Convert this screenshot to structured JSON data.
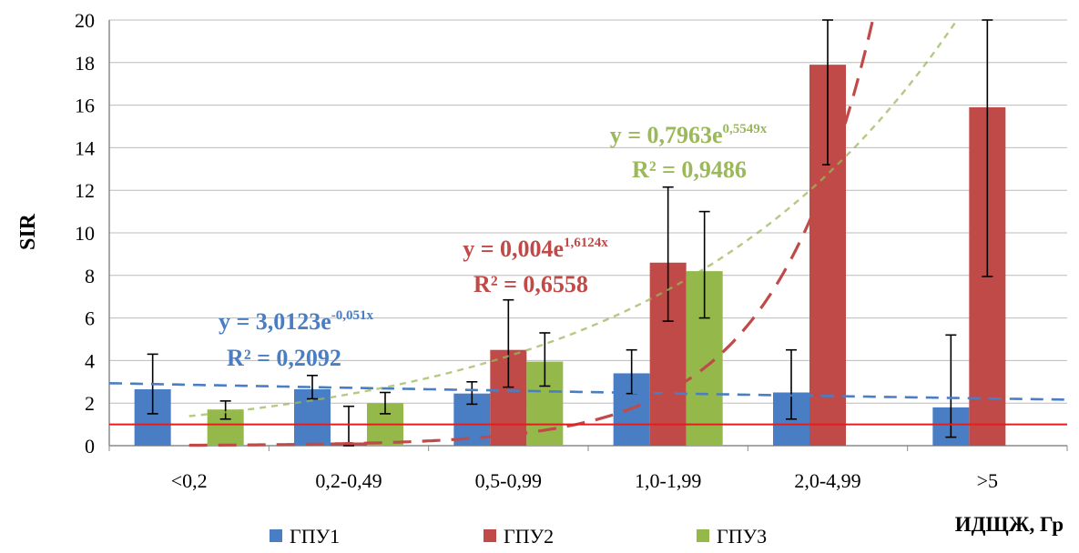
{
  "chart_data": {
    "type": "bar",
    "title": "",
    "xlabel": "ИДЩЖ, Гр",
    "ylabel": "SIR",
    "ylim": [
      0,
      20
    ],
    "yticks": [
      0,
      2,
      4,
      6,
      8,
      10,
      12,
      14,
      16,
      18,
      20
    ],
    "grid": true,
    "legend_position": "bottom",
    "categories": [
      "<0,2",
      "0,2-0,49",
      "0,5-0,99",
      "1,0-1,99",
      "2,0-4,99",
      ">5"
    ],
    "series": [
      {
        "name": "ГПУ1",
        "color": "#4a7ec4",
        "values": [
          2.65,
          2.65,
          2.45,
          3.4,
          2.5,
          1.8
        ],
        "error_low": [
          1.5,
          2.2,
          1.95,
          2.45,
          1.25,
          0.4
        ],
        "error_high": [
          4.3,
          3.3,
          3.0,
          4.5,
          4.5,
          5.2
        ]
      },
      {
        "name": "ГПУ2",
        "color": "#c04a48",
        "values": [
          null,
          0.15,
          4.5,
          8.6,
          17.9,
          15.9
        ],
        "error_low": [
          null,
          0.0,
          2.75,
          5.85,
          13.2,
          7.95
        ],
        "error_high": [
          null,
          1.85,
          6.85,
          12.15,
          20.0,
          20.0
        ]
      },
      {
        "name": "ГПУ3",
        "color": "#94b94a",
        "values": [
          1.7,
          2.0,
          3.95,
          8.2,
          null,
          null
        ],
        "error_low": [
          1.25,
          1.5,
          2.8,
          6.0,
          null,
          null
        ],
        "error_high": [
          2.1,
          2.5,
          5.3,
          11.0,
          null,
          null
        ]
      }
    ],
    "trendlines": [
      {
        "series": "ГПУ1",
        "kind": "exponential",
        "a": 3.0123,
        "b": -0.051,
        "color": "#4a7ec4",
        "equation_prefix": "y = 3,0123e",
        "equation_exponent": "-0,051x",
        "r2_text": "R² = 0,2092"
      },
      {
        "series": "ГПУ2",
        "kind": "exponential",
        "a": 0.004,
        "b": 1.6124,
        "color": "#c04a48",
        "equation_prefix": "y = 0,004e",
        "equation_exponent": "1,6124x",
        "r2_text": "R² = 0,6558"
      },
      {
        "series": "ГПУ3",
        "kind": "exponential",
        "a": 0.7963,
        "b": 0.5549,
        "color": "#9bb85a",
        "equation_prefix": "y = 0,7963e",
        "equation_exponent": "0,5549x",
        "r2_text": "R² = 0,9486"
      }
    ],
    "reference_line": {
      "y": 1,
      "color": "#e81c1c"
    }
  }
}
